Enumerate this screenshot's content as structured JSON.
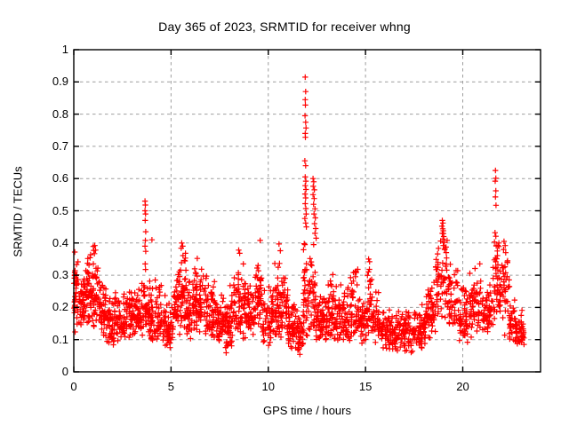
{
  "chart_data": {
    "type": "scatter",
    "title": "Day 365 of 2023, SRMTID for receiver whng",
    "xlabel": "GPS time / hours",
    "ylabel": "SRMTID / TECUs",
    "xlim": [
      0,
      24
    ],
    "ylim": [
      0,
      1
    ],
    "xticks": [
      {
        "v": 0,
        "label": "0"
      },
      {
        "v": 5,
        "label": "5"
      },
      {
        "v": 10,
        "label": "10"
      },
      {
        "v": 15,
        "label": "15"
      },
      {
        "v": 20,
        "label": "20"
      }
    ],
    "yticks": [
      {
        "v": 0,
        "label": "0"
      },
      {
        "v": 0.1,
        "label": "0.1"
      },
      {
        "v": 0.2,
        "label": "0.2"
      },
      {
        "v": 0.3,
        "label": "0.3"
      },
      {
        "v": 0.4,
        "label": "0.4"
      },
      {
        "v": 0.5,
        "label": "0.5"
      },
      {
        "v": 0.6,
        "label": "0.6"
      },
      {
        "v": 0.7,
        "label": "0.7"
      },
      {
        "v": 0.8,
        "label": "0.8"
      },
      {
        "v": 0.9,
        "label": "0.9"
      },
      {
        "v": 1,
        "label": "1"
      }
    ],
    "grid": "dashed",
    "grid_color": "#9e9e9e",
    "border_color": "#000000",
    "background": "#ffffff",
    "legend": "none",
    "marker": "plus",
    "marker_color": "#ff0000",
    "marker_size_px": 6.4,
    "x_data_range": [
      0,
      23.15
    ],
    "seed": 1337,
    "series": [
      {
        "name": "SRMTID",
        "spike_points": [
          [
            11.9,
            0.915
          ],
          [
            11.92,
            0.87
          ],
          [
            11.9,
            0.845
          ],
          [
            11.91,
            0.828
          ],
          [
            11.89,
            0.795
          ],
          [
            11.92,
            0.775
          ],
          [
            11.94,
            0.757
          ],
          [
            11.9,
            0.74
          ],
          [
            11.91,
            0.728
          ],
          [
            11.88,
            0.655
          ],
          [
            11.92,
            0.64
          ],
          [
            11.9,
            0.605
          ],
          [
            11.93,
            0.592
          ],
          [
            11.9,
            0.578
          ],
          [
            11.94,
            0.566
          ],
          [
            11.89,
            0.552
          ],
          [
            11.92,
            0.54
          ],
          [
            11.9,
            0.522
          ],
          [
            11.93,
            0.507
          ],
          [
            11.95,
            0.49
          ],
          [
            11.88,
            0.476
          ],
          [
            11.92,
            0.462
          ],
          [
            11.96,
            0.45
          ],
          [
            12.3,
            0.6
          ],
          [
            12.34,
            0.59
          ],
          [
            12.31,
            0.576
          ],
          [
            12.37,
            0.565
          ],
          [
            12.3,
            0.55
          ],
          [
            12.36,
            0.538
          ],
          [
            12.33,
            0.52
          ],
          [
            12.4,
            0.506
          ],
          [
            12.35,
            0.49
          ],
          [
            12.42,
            0.478
          ],
          [
            12.38,
            0.46
          ],
          [
            12.44,
            0.445
          ],
          [
            12.4,
            0.43
          ],
          [
            12.46,
            0.415
          ],
          [
            3.66,
            0.53
          ],
          [
            3.68,
            0.518
          ],
          [
            3.66,
            0.5
          ],
          [
            3.69,
            0.49
          ],
          [
            3.67,
            0.47
          ],
          [
            3.7,
            0.435
          ],
          [
            3.68,
            0.408
          ],
          [
            3.66,
            0.39
          ],
          [
            3.7,
            0.374
          ],
          [
            3.67,
            0.335
          ],
          [
            3.69,
            0.318
          ],
          [
            18.95,
            0.47
          ],
          [
            18.98,
            0.462
          ],
          [
            18.93,
            0.452
          ],
          [
            18.97,
            0.444
          ],
          [
            19.0,
            0.438
          ],
          [
            18.95,
            0.43
          ],
          [
            19.02,
            0.42
          ],
          [
            18.98,
            0.412
          ],
          [
            19.05,
            0.402
          ],
          [
            19.0,
            0.392
          ],
          [
            19.08,
            0.382
          ],
          [
            21.68,
            0.625
          ],
          [
            21.7,
            0.601
          ],
          [
            21.67,
            0.592
          ],
          [
            21.7,
            0.562
          ],
          [
            21.68,
            0.543
          ],
          [
            21.71,
            0.517
          ],
          [
            21.66,
            0.432
          ],
          [
            21.7,
            0.421
          ],
          [
            21.63,
            0.403
          ],
          [
            21.72,
            0.392
          ],
          [
            9.58,
            0.408
          ],
          [
            4.02,
            0.41
          ],
          [
            1.08,
            0.392
          ],
          [
            1.12,
            0.378
          ],
          [
            5.55,
            0.4
          ],
          [
            5.6,
            0.39
          ],
          [
            5.52,
            0.384
          ],
          [
            22.12,
            0.405
          ],
          [
            22.18,
            0.392
          ],
          [
            22.1,
            0.38
          ],
          [
            22.21,
            0.37
          ],
          [
            8.48,
            0.378
          ],
          [
            8.53,
            0.368
          ],
          [
            10.55,
            0.397
          ],
          [
            10.62,
            0.376
          ],
          [
            15.16,
            0.35
          ],
          [
            15.21,
            0.342
          ],
          [
            0.05,
            0.372
          ],
          [
            6.35,
            0.352
          ],
          [
            13.32,
            0.302
          ]
        ],
        "bands": [
          [
            0.0,
            0.25,
            40,
            0.1,
            0.37,
            0.3
          ],
          [
            0.25,
            0.6,
            45,
            0.13,
            0.33,
            0.22
          ],
          [
            0.6,
            0.9,
            40,
            0.13,
            0.38,
            0.25
          ],
          [
            0.9,
            1.3,
            48,
            0.12,
            0.39,
            0.22
          ],
          [
            1.3,
            1.7,
            45,
            0.1,
            0.3,
            0.18
          ],
          [
            1.7,
            2.1,
            45,
            0.07,
            0.25,
            0.14
          ],
          [
            2.1,
            2.6,
            50,
            0.09,
            0.27,
            0.16
          ],
          [
            2.6,
            3.1,
            50,
            0.09,
            0.28,
            0.17
          ],
          [
            3.1,
            3.5,
            45,
            0.1,
            0.26,
            0.16
          ],
          [
            3.5,
            3.9,
            40,
            0.1,
            0.3,
            0.18
          ],
          [
            3.9,
            4.3,
            45,
            0.08,
            0.3,
            0.15
          ],
          [
            4.3,
            4.7,
            40,
            0.08,
            0.28,
            0.15
          ],
          [
            4.7,
            5.1,
            40,
            0.05,
            0.22,
            0.12
          ],
          [
            5.1,
            5.5,
            45,
            0.1,
            0.33,
            0.2
          ],
          [
            5.5,
            5.8,
            40,
            0.12,
            0.4,
            0.25
          ],
          [
            5.8,
            6.2,
            45,
            0.1,
            0.3,
            0.18
          ],
          [
            6.2,
            6.7,
            55,
            0.12,
            0.35,
            0.22
          ],
          [
            6.7,
            7.3,
            65,
            0.1,
            0.32,
            0.18
          ],
          [
            7.3,
            7.8,
            55,
            0.08,
            0.25,
            0.14
          ],
          [
            7.8,
            8.2,
            50,
            0.05,
            0.28,
            0.13
          ],
          [
            8.2,
            8.9,
            70,
            0.1,
            0.38,
            0.2
          ],
          [
            8.9,
            9.3,
            45,
            0.1,
            0.28,
            0.17
          ],
          [
            9.3,
            9.7,
            45,
            0.12,
            0.36,
            0.22
          ],
          [
            9.7,
            10.3,
            60,
            0.08,
            0.28,
            0.15
          ],
          [
            10.3,
            11.0,
            75,
            0.1,
            0.36,
            0.2
          ],
          [
            11.0,
            11.5,
            55,
            0.06,
            0.25,
            0.13
          ],
          [
            11.5,
            11.8,
            35,
            0.04,
            0.2,
            0.1
          ],
          [
            11.8,
            12.15,
            45,
            0.1,
            0.45,
            0.2
          ],
          [
            12.15,
            12.45,
            30,
            0.1,
            0.4,
            0.18
          ],
          [
            12.45,
            13.0,
            60,
            0.08,
            0.25,
            0.14
          ],
          [
            13.0,
            13.6,
            60,
            0.09,
            0.3,
            0.16
          ],
          [
            13.6,
            14.2,
            60,
            0.08,
            0.28,
            0.15
          ],
          [
            14.2,
            14.7,
            50,
            0.1,
            0.33,
            0.18
          ],
          [
            14.7,
            15.05,
            35,
            0.08,
            0.25,
            0.14
          ],
          [
            15.05,
            15.35,
            35,
            0.1,
            0.35,
            0.2
          ],
          [
            15.35,
            15.9,
            50,
            0.08,
            0.25,
            0.14
          ],
          [
            15.9,
            16.6,
            65,
            0.06,
            0.2,
            0.12
          ],
          [
            16.6,
            17.4,
            75,
            0.05,
            0.2,
            0.12
          ],
          [
            17.4,
            18.1,
            65,
            0.06,
            0.22,
            0.13
          ],
          [
            18.1,
            18.6,
            50,
            0.1,
            0.3,
            0.17
          ],
          [
            18.6,
            19.25,
            60,
            0.15,
            0.45,
            0.27
          ],
          [
            19.25,
            19.8,
            50,
            0.12,
            0.35,
            0.2
          ],
          [
            19.8,
            20.3,
            50,
            0.08,
            0.28,
            0.16
          ],
          [
            20.3,
            21.0,
            65,
            0.1,
            0.35,
            0.19
          ],
          [
            21.0,
            21.5,
            50,
            0.1,
            0.3,
            0.17
          ],
          [
            21.5,
            21.9,
            40,
            0.12,
            0.44,
            0.25
          ],
          [
            21.9,
            22.4,
            45,
            0.1,
            0.41,
            0.22
          ],
          [
            22.4,
            22.8,
            40,
            0.08,
            0.25,
            0.14
          ],
          [
            22.8,
            23.15,
            35,
            0.06,
            0.2,
            0.12
          ]
        ]
      }
    ]
  }
}
